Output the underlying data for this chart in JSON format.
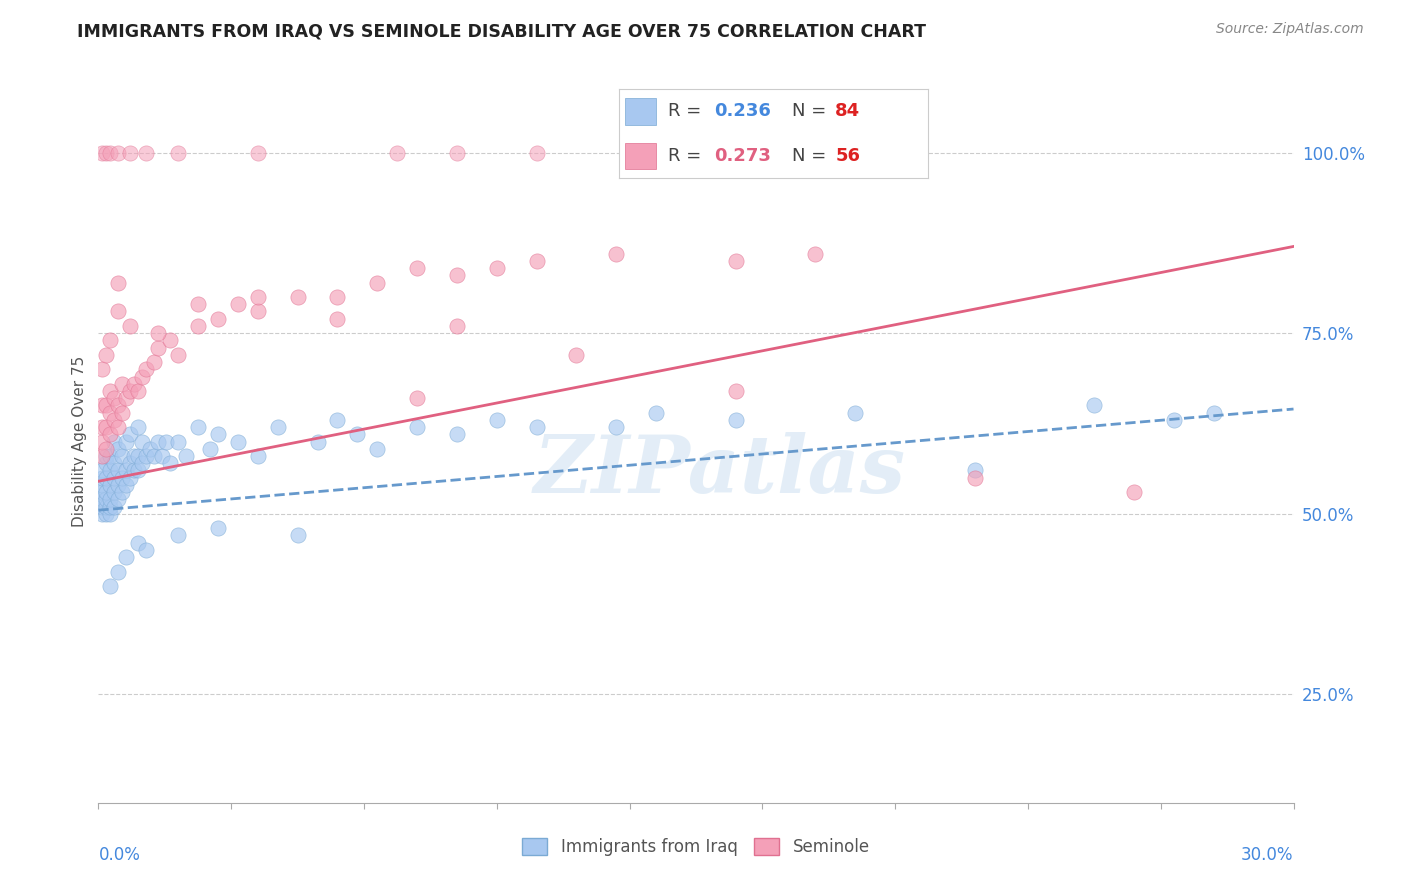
{
  "title": "IMMIGRANTS FROM IRAQ VS SEMINOLE DISABILITY AGE OVER 75 CORRELATION CHART",
  "source": "Source: ZipAtlas.com",
  "ylabel": "Disability Age Over 75",
  "xlim": [
    0.0,
    0.3
  ],
  "ylim": [
    0.1,
    1.1
  ],
  "ytick_values": [
    0.25,
    0.5,
    0.75,
    1.0
  ],
  "ytick_labels": [
    "25.0%",
    "50.0%",
    "75.0%",
    "100.0%"
  ],
  "color_blue": "#a8c8f0",
  "color_blue_edge": "#7baad4",
  "color_pink": "#f4a0b8",
  "color_pink_edge": "#e07090",
  "color_blue_line": "#6699cc",
  "color_pink_line": "#e06080",
  "color_r_blue": "#4488dd",
  "color_n_blue": "#dd2222",
  "color_r_pink": "#e06080",
  "color_n_pink": "#dd2222",
  "color_grid": "#cccccc",
  "color_tick": "#4488dd",
  "background_color": "#ffffff",
  "watermark": "ZIPatlas",
  "iraq_line_x": [
    0.0,
    0.3
  ],
  "iraq_line_y": [
    0.505,
    0.645
  ],
  "seminole_line_x": [
    0.0,
    0.3
  ],
  "seminole_line_y": [
    0.545,
    0.87
  ],
  "iraq_x": [
    0.001,
    0.001,
    0.001,
    0.001,
    0.001,
    0.001,
    0.001,
    0.002,
    0.002,
    0.002,
    0.002,
    0.002,
    0.002,
    0.002,
    0.003,
    0.003,
    0.003,
    0.003,
    0.003,
    0.003,
    0.004,
    0.004,
    0.004,
    0.004,
    0.004,
    0.005,
    0.005,
    0.005,
    0.005,
    0.006,
    0.006,
    0.006,
    0.007,
    0.007,
    0.007,
    0.008,
    0.008,
    0.008,
    0.009,
    0.009,
    0.01,
    0.01,
    0.01,
    0.011,
    0.011,
    0.012,
    0.013,
    0.014,
    0.015,
    0.016,
    0.017,
    0.018,
    0.02,
    0.022,
    0.025,
    0.028,
    0.03,
    0.035,
    0.04,
    0.045,
    0.055,
    0.06,
    0.065,
    0.07,
    0.08,
    0.09,
    0.1,
    0.11,
    0.13,
    0.14,
    0.16,
    0.19,
    0.22,
    0.25,
    0.27,
    0.28,
    0.003,
    0.005,
    0.007,
    0.01,
    0.012,
    0.02,
    0.03,
    0.05
  ],
  "iraq_y": [
    0.5,
    0.51,
    0.52,
    0.53,
    0.54,
    0.55,
    0.56,
    0.5,
    0.51,
    0.52,
    0.53,
    0.55,
    0.57,
    0.58,
    0.5,
    0.51,
    0.52,
    0.54,
    0.56,
    0.58,
    0.51,
    0.53,
    0.55,
    0.57,
    0.6,
    0.52,
    0.54,
    0.56,
    0.59,
    0.53,
    0.55,
    0.58,
    0.54,
    0.56,
    0.6,
    0.55,
    0.57,
    0.61,
    0.56,
    0.58,
    0.56,
    0.58,
    0.62,
    0.57,
    0.6,
    0.58,
    0.59,
    0.58,
    0.6,
    0.58,
    0.6,
    0.57,
    0.6,
    0.58,
    0.62,
    0.59,
    0.61,
    0.6,
    0.58,
    0.62,
    0.6,
    0.63,
    0.61,
    0.59,
    0.62,
    0.61,
    0.63,
    0.62,
    0.62,
    0.64,
    0.63,
    0.64,
    0.56,
    0.65,
    0.63,
    0.64,
    0.4,
    0.42,
    0.44,
    0.46,
    0.45,
    0.47,
    0.48,
    0.47
  ],
  "seminole_x": [
    0.001,
    0.001,
    0.001,
    0.001,
    0.002,
    0.002,
    0.002,
    0.003,
    0.003,
    0.003,
    0.004,
    0.004,
    0.005,
    0.005,
    0.006,
    0.006,
    0.007,
    0.008,
    0.009,
    0.01,
    0.011,
    0.012,
    0.014,
    0.015,
    0.018,
    0.02,
    0.025,
    0.03,
    0.035,
    0.04,
    0.05,
    0.06,
    0.07,
    0.08,
    0.09,
    0.1,
    0.11,
    0.13,
    0.16,
    0.18,
    0.22,
    0.26,
    0.001,
    0.002,
    0.003,
    0.005,
    0.008,
    0.015,
    0.025,
    0.04,
    0.08,
    0.16,
    0.005,
    0.06,
    0.09,
    0.12
  ],
  "seminole_y": [
    0.58,
    0.6,
    0.62,
    0.65,
    0.59,
    0.62,
    0.65,
    0.61,
    0.64,
    0.67,
    0.63,
    0.66,
    0.62,
    0.65,
    0.64,
    0.68,
    0.66,
    0.67,
    0.68,
    0.67,
    0.69,
    0.7,
    0.71,
    0.73,
    0.74,
    0.72,
    0.76,
    0.77,
    0.79,
    0.78,
    0.8,
    0.8,
    0.82,
    0.84,
    0.83,
    0.84,
    0.85,
    0.86,
    0.85,
    0.86,
    0.55,
    0.53,
    0.7,
    0.72,
    0.74,
    0.78,
    0.76,
    0.75,
    0.79,
    0.8,
    0.66,
    0.67,
    0.82,
    0.77,
    0.76,
    0.72
  ],
  "seminole_top_x": [
    0.001,
    0.002,
    0.003,
    0.005,
    0.008,
    0.012,
    0.02,
    0.04,
    0.075,
    0.09,
    0.11,
    0.15
  ],
  "seminole_top_y": [
    1.0,
    1.0,
    1.0,
    1.0,
    1.0,
    1.0,
    1.0,
    1.0,
    1.0,
    1.0,
    1.0,
    1.0
  ]
}
